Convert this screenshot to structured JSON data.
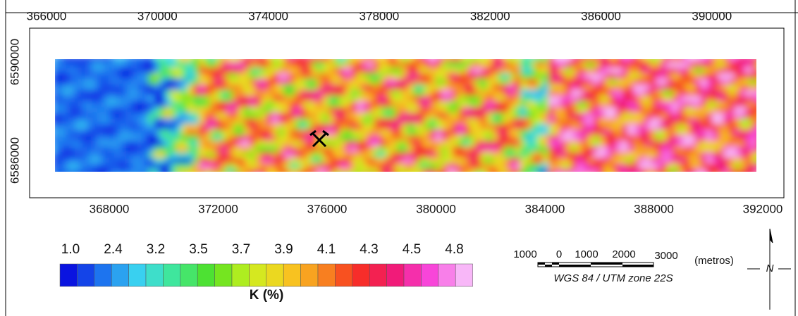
{
  "top_axis": {
    "ticks": [
      366000,
      370000,
      374000,
      378000,
      382000,
      386000,
      390000
    ]
  },
  "bottom_axis": {
    "ticks": [
      368000,
      372000,
      376000,
      380000,
      384000,
      388000,
      392000
    ]
  },
  "left_axis": {
    "ticks": [
      6590000,
      6586000
    ]
  },
  "colorbar": {
    "labels": [
      "1.0",
      "2.4",
      "3.2",
      "3.5",
      "3.7",
      "3.9",
      "4.1",
      "4.3",
      "4.5",
      "4.8"
    ],
    "title": "K (%)"
  },
  "scale_bar": {
    "labels": [
      "1000",
      "0",
      "1000",
      "2000",
      "3000"
    ],
    "unit": "(metros)",
    "projection": "WGS 84 / UTM zone 22S"
  },
  "north_arrow": {
    "label": "N"
  }
}
